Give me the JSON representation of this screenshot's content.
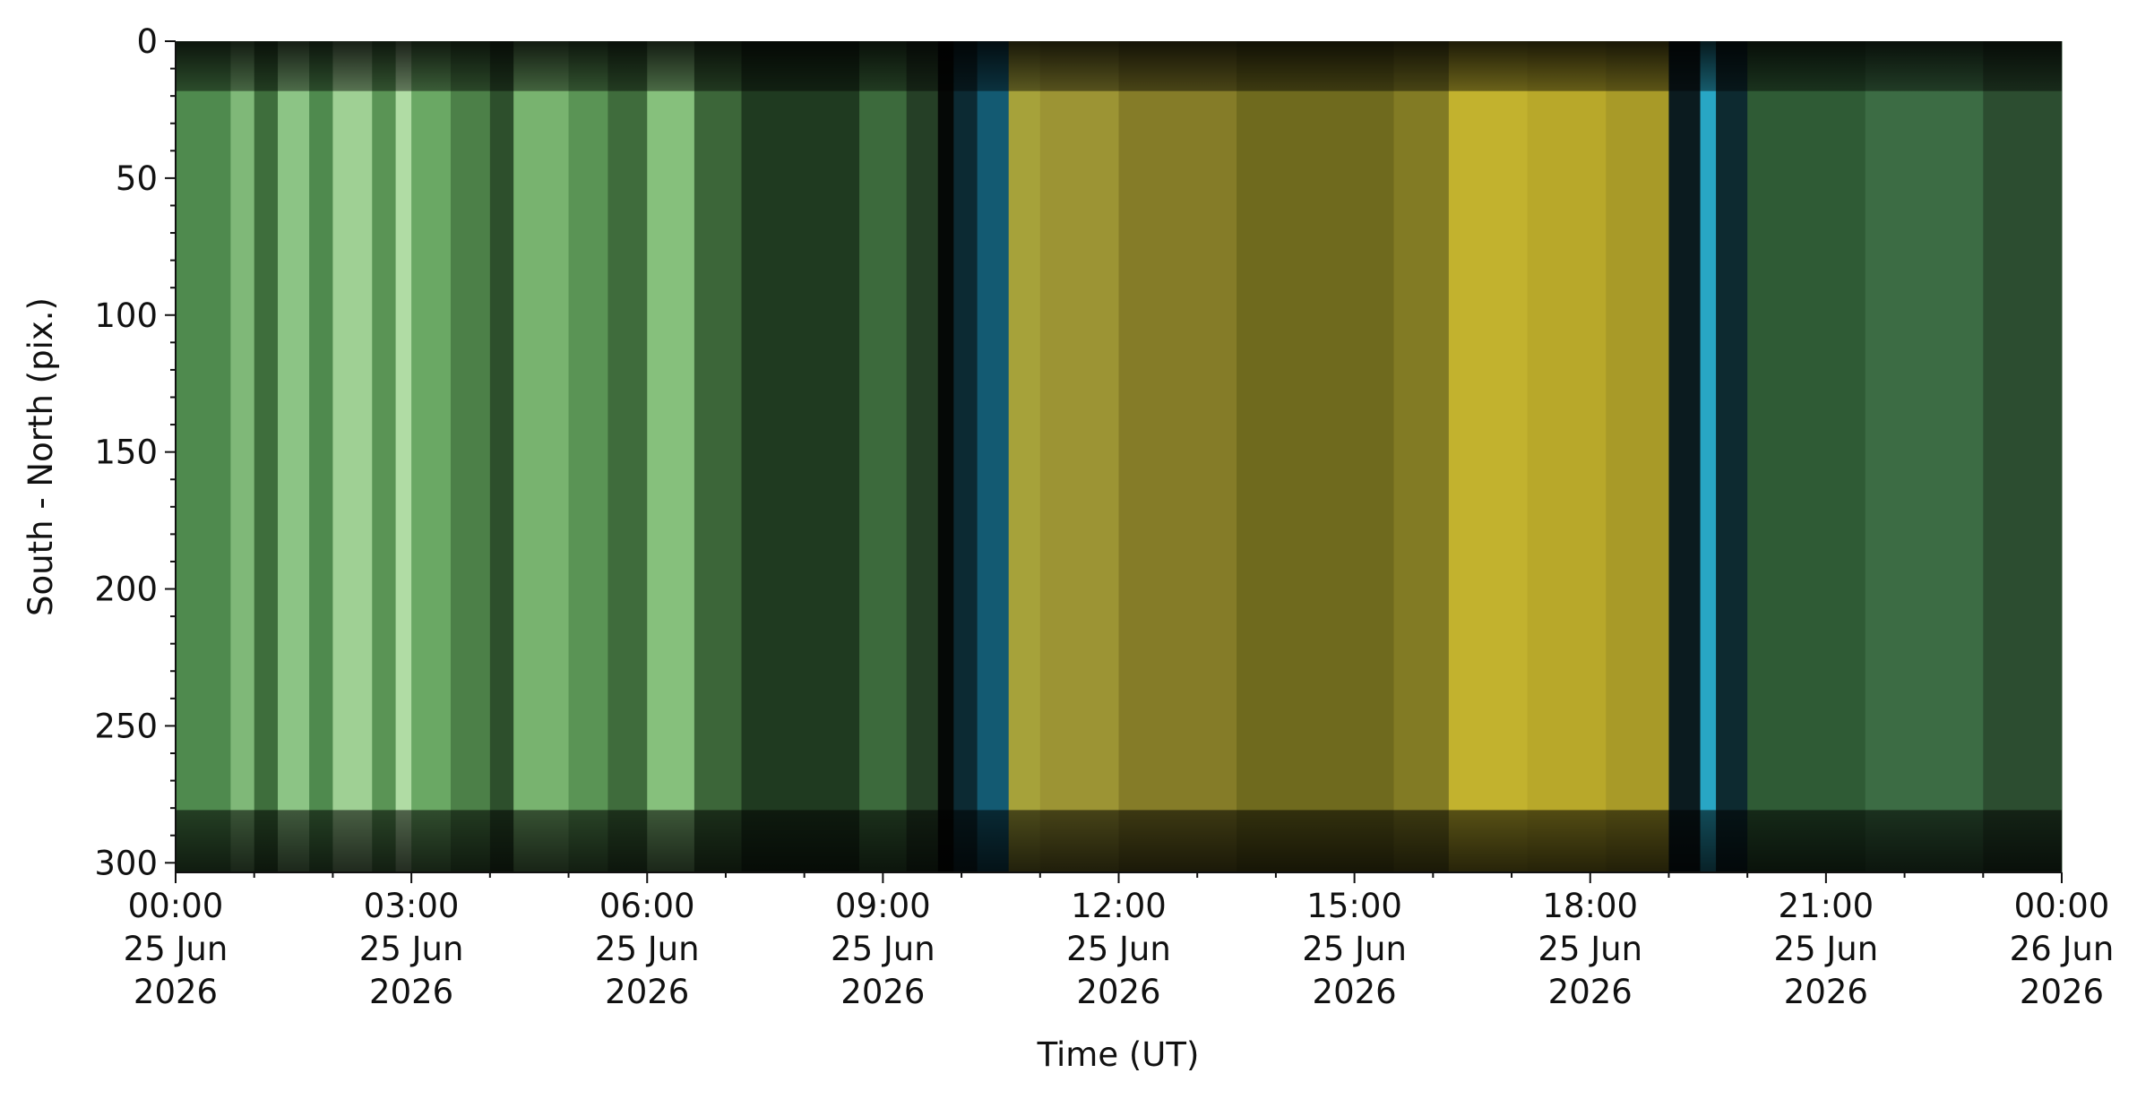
{
  "chart_data": {
    "type": "keogram",
    "xlabel": "Time (UT)",
    "ylabel": "South - North (pix.)",
    "xlim": [
      0,
      24
    ],
    "xticks": [
      {
        "value": 0,
        "label": [
          "00:00",
          "25 Jun",
          "2026"
        ]
      },
      {
        "value": 3,
        "label": [
          "03:00",
          "25 Jun",
          "2026"
        ]
      },
      {
        "value": 6,
        "label": [
          "06:00",
          "25 Jun",
          "2026"
        ]
      },
      {
        "value": 9,
        "label": [
          "09:00",
          "25 Jun",
          "2026"
        ]
      },
      {
        "value": 12,
        "label": [
          "12:00",
          "25 Jun",
          "2026"
        ]
      },
      {
        "value": 15,
        "label": [
          "15:00",
          "25 Jun",
          "2026"
        ]
      },
      {
        "value": 18,
        "label": [
          "18:00",
          "25 Jun",
          "2026"
        ]
      },
      {
        "value": 21,
        "label": [
          "21:00",
          "25 Jun",
          "2026"
        ]
      },
      {
        "value": 24,
        "label": [
          "00:00",
          "26 Jun",
          "2026"
        ]
      }
    ],
    "xminorticks": [
      1,
      2,
      4,
      5,
      7,
      8,
      10,
      11,
      13,
      14,
      16,
      17,
      19,
      20,
      22,
      23
    ],
    "ylim": [
      303.5,
      0
    ],
    "yticks": [
      0,
      50,
      100,
      150,
      200,
      250,
      300
    ],
    "yminorticks": [
      10,
      20,
      30,
      40,
      60,
      70,
      80,
      90,
      110,
      120,
      130,
      140,
      160,
      170,
      180,
      190,
      210,
      220,
      230,
      240,
      260,
      270,
      280,
      290
    ],
    "columns": [
      {
        "start": 0.0,
        "end": 0.7,
        "color": "#4f8a4e"
      },
      {
        "start": 0.7,
        "end": 1.0,
        "color": "#7fb878"
      },
      {
        "start": 1.0,
        "end": 1.3,
        "color": "#3e6e3c"
      },
      {
        "start": 1.3,
        "end": 1.7,
        "color": "#8cc485"
      },
      {
        "start": 1.7,
        "end": 2.0,
        "color": "#4f8a4e"
      },
      {
        "start": 2.0,
        "end": 2.5,
        "color": "#9fd094"
      },
      {
        "start": 2.5,
        "end": 2.8,
        "color": "#5a9455"
      },
      {
        "start": 2.8,
        "end": 3.0,
        "color": "#b0dca4"
      },
      {
        "start": 3.0,
        "end": 3.5,
        "color": "#6aa864"
      },
      {
        "start": 3.5,
        "end": 4.0,
        "color": "#4c8048"
      },
      {
        "start": 4.0,
        "end": 4.3,
        "color": "#2d4f2c"
      },
      {
        "start": 4.3,
        "end": 5.0,
        "color": "#78b36f"
      },
      {
        "start": 5.0,
        "end": 5.5,
        "color": "#5a9455"
      },
      {
        "start": 5.5,
        "end": 6.0,
        "color": "#3f6c3c"
      },
      {
        "start": 6.0,
        "end": 6.6,
        "color": "#86c07c"
      },
      {
        "start": 6.6,
        "end": 7.2,
        "color": "#3c6639"
      },
      {
        "start": 7.2,
        "end": 8.7,
        "color": "#1f3a20"
      },
      {
        "start": 8.7,
        "end": 9.3,
        "color": "#3c6a3c"
      },
      {
        "start": 9.3,
        "end": 9.7,
        "color": "#253f26"
      },
      {
        "start": 9.7,
        "end": 9.9,
        "color": "#050806"
      },
      {
        "start": 9.9,
        "end": 10.2,
        "color": "#0c2a33"
      },
      {
        "start": 10.2,
        "end": 10.6,
        "color": "#135a72"
      },
      {
        "start": 10.6,
        "end": 11.0,
        "color": "#a6a23a"
      },
      {
        "start": 11.0,
        "end": 12.0,
        "color": "#9c9434"
      },
      {
        "start": 12.0,
        "end": 13.5,
        "color": "#857c28"
      },
      {
        "start": 13.5,
        "end": 15.5,
        "color": "#6f6a1e"
      },
      {
        "start": 15.5,
        "end": 16.2,
        "color": "#827b24"
      },
      {
        "start": 16.2,
        "end": 17.2,
        "color": "#c2b22e"
      },
      {
        "start": 17.2,
        "end": 18.2,
        "color": "#b8a82a"
      },
      {
        "start": 18.2,
        "end": 19.0,
        "color": "#a89a28"
      },
      {
        "start": 19.0,
        "end": 19.4,
        "color": "#0b1b1f"
      },
      {
        "start": 19.4,
        "end": 19.6,
        "color": "#28a6c4"
      },
      {
        "start": 19.6,
        "end": 20.0,
        "color": "#0d2a30"
      },
      {
        "start": 20.0,
        "end": 21.5,
        "color": "#2f5b35"
      },
      {
        "start": 21.5,
        "end": 23.0,
        "color": "#3c6c44"
      },
      {
        "start": 23.0,
        "end": 24.0,
        "color": "#2c4d30"
      }
    ]
  }
}
